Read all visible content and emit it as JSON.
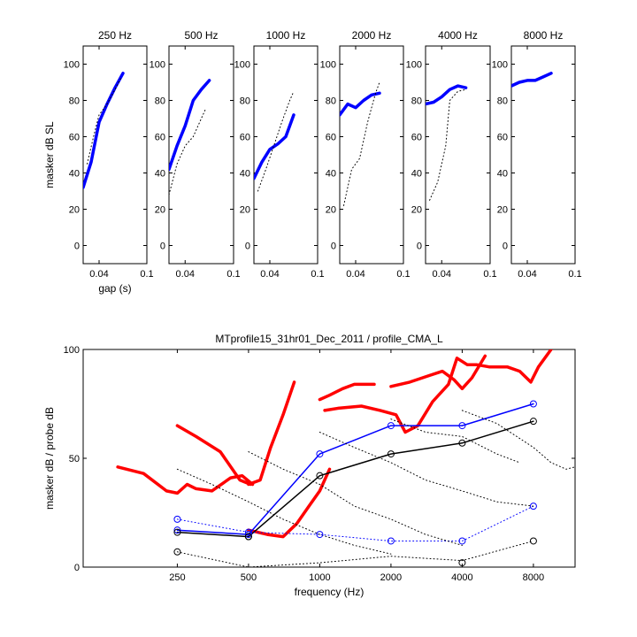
{
  "figure": {
    "background": "#ffffff"
  },
  "chart_data": [
    {
      "type": "line",
      "title": "250 Hz",
      "ylabel": "masker dB SL",
      "xlabel": "gap (s)",
      "xlim": [
        0.02,
        0.1
      ],
      "ylim": [
        -10,
        110
      ],
      "xticks": [
        0.04,
        0.1
      ],
      "xtick_labels": [
        "0.04",
        "0.1"
      ],
      "yticks": [
        0,
        20,
        40,
        60,
        80,
        100
      ],
      "ytick_labels": [
        "0",
        "20",
        "40",
        "60",
        "80",
        "100"
      ],
      "series": [
        {
          "style": "solid-thick",
          "color": "#0000ff",
          "x": [
            0.02,
            0.03,
            0.04,
            0.05,
            0.06,
            0.07
          ],
          "y": [
            32,
            46,
            68,
            78,
            87,
            95
          ]
        },
        {
          "style": "dotted",
          "color": "#000000",
          "x": [
            0.025,
            0.033,
            0.04,
            0.05,
            0.06,
            0.067
          ],
          "y": [
            45,
            60,
            72,
            78,
            86,
            92
          ]
        }
      ]
    },
    {
      "type": "line",
      "title": "500 Hz",
      "xlim": [
        0.02,
        0.1
      ],
      "ylim": [
        -10,
        110
      ],
      "xticks": [
        0.04,
        0.1
      ],
      "xtick_labels": [
        "0.04",
        "0.1"
      ],
      "yticks": [
        0,
        20,
        40,
        60,
        80,
        100
      ],
      "ytick_labels": [
        "0",
        "20",
        "40",
        "60",
        "80",
        "100"
      ],
      "series": [
        {
          "style": "solid-thick",
          "color": "#0000ff",
          "x": [
            0.02,
            0.03,
            0.04,
            0.05,
            0.06,
            0.07
          ],
          "y": [
            42,
            55,
            66,
            80,
            86,
            91
          ]
        },
        {
          "style": "dotted",
          "color": "#000000",
          "x": [
            0.02,
            0.03,
            0.04,
            0.05,
            0.06,
            0.065
          ],
          "y": [
            28,
            45,
            55,
            60,
            70,
            75
          ]
        }
      ]
    },
    {
      "type": "line",
      "title": "1000 Hz",
      "xlim": [
        0.02,
        0.1
      ],
      "ylim": [
        -10,
        110
      ],
      "xticks": [
        0.04,
        0.1
      ],
      "xtick_labels": [
        "0.04",
        "0.1"
      ],
      "yticks": [
        0,
        20,
        40,
        60,
        80,
        100
      ],
      "ytick_labels": [
        "0",
        "20",
        "40",
        "60",
        "80",
        "100"
      ],
      "series": [
        {
          "style": "solid-thick",
          "color": "#0000ff",
          "x": [
            0.02,
            0.03,
            0.04,
            0.05,
            0.06,
            0.07
          ],
          "y": [
            37,
            46,
            53,
            56,
            60,
            72
          ]
        },
        {
          "style": "dotted",
          "color": "#000000",
          "x": [
            0.025,
            0.035,
            0.045,
            0.055,
            0.065,
            0.07
          ],
          "y": [
            30,
            42,
            55,
            68,
            80,
            85
          ]
        }
      ]
    },
    {
      "type": "line",
      "title": "2000 Hz",
      "xlim": [
        0.02,
        0.1
      ],
      "ylim": [
        -10,
        110
      ],
      "xticks": [
        0.04,
        0.1
      ],
      "xtick_labels": [
        "0.04",
        "0.1"
      ],
      "yticks": [
        0,
        20,
        40,
        60,
        80,
        100
      ],
      "ytick_labels": [
        "0",
        "20",
        "40",
        "60",
        "80",
        "100"
      ],
      "series": [
        {
          "style": "solid-thick",
          "color": "#0000ff",
          "x": [
            0.02,
            0.03,
            0.04,
            0.05,
            0.06,
            0.07
          ],
          "y": [
            72,
            78,
            76,
            80,
            83,
            84
          ]
        },
        {
          "style": "dotted",
          "color": "#000000",
          "x": [
            0.025,
            0.035,
            0.045,
            0.055,
            0.065,
            0.07
          ],
          "y": [
            22,
            42,
            48,
            68,
            84,
            90
          ]
        }
      ]
    },
    {
      "type": "line",
      "title": "4000 Hz",
      "xlim": [
        0.02,
        0.1
      ],
      "ylim": [
        -10,
        110
      ],
      "xticks": [
        0.04,
        0.1
      ],
      "xtick_labels": [
        "0.04",
        "0.1"
      ],
      "yticks": [
        0,
        20,
        40,
        60,
        80,
        100
      ],
      "ytick_labels": [
        "0",
        "20",
        "40",
        "60",
        "80",
        "100"
      ],
      "series": [
        {
          "style": "solid-thick",
          "color": "#0000ff",
          "x": [
            0.02,
            0.03,
            0.04,
            0.05,
            0.06,
            0.07
          ],
          "y": [
            78,
            79,
            82,
            86,
            88,
            87
          ]
        },
        {
          "style": "dotted",
          "color": "#000000",
          "x": [
            0.025,
            0.035,
            0.045,
            0.05,
            0.06,
            0.07
          ],
          "y": [
            25,
            35,
            55,
            80,
            85,
            86
          ]
        }
      ]
    },
    {
      "type": "line",
      "title": "8000 Hz",
      "xlim": [
        0.02,
        0.1
      ],
      "ylim": [
        -10,
        110
      ],
      "xticks": [
        0.04,
        0.1
      ],
      "xtick_labels": [
        "0.04",
        "0.1"
      ],
      "yticks": [
        0,
        20,
        40,
        60,
        80,
        100
      ],
      "ytick_labels": [
        "0",
        "20",
        "40",
        "60",
        "80",
        "100"
      ],
      "series": [
        {
          "style": "solid-thick",
          "color": "#0000ff",
          "x": [
            0.02,
            0.03,
            0.04,
            0.05,
            0.06,
            0.07
          ],
          "y": [
            88,
            90,
            91,
            91,
            93,
            95
          ]
        }
      ]
    },
    {
      "type": "line",
      "title": "MTprofile15_31hr01_Dec_2011 / profile_CMA_L",
      "xlabel": "frequency (Hz)",
      "ylabel": "masker dB / probe dB",
      "x_scale": "log",
      "xlim": [
        100,
        12000
      ],
      "ylim": [
        0,
        100
      ],
      "xticks": [
        250,
        500,
        1000,
        2000,
        4000,
        8000
      ],
      "xtick_labels": [
        "250",
        "500",
        "1000",
        "2000",
        "4000",
        "8000"
      ],
      "yticks": [
        0,
        50,
        100
      ],
      "ytick_labels": [
        "0",
        "50",
        "100"
      ],
      "series": [
        {
          "style": "solid-thick",
          "color": "#ff0000",
          "x": [
            140,
            180,
            225,
            250,
            275,
            300,
            350,
            420,
            470,
            520
          ],
          "y": [
            46,
            43,
            35,
            34,
            38,
            36,
            35,
            41,
            42,
            38
          ]
        },
        {
          "style": "solid-thick",
          "color": "#ff0000",
          "x": [
            250,
            300,
            380,
            460,
            510
          ],
          "y": [
            65,
            60,
            53,
            40,
            38
          ]
        },
        {
          "style": "solid-thick",
          "color": "#ff0000",
          "x": [
            500,
            560,
            620,
            700,
            780
          ],
          "y": [
            38,
            40,
            55,
            70,
            85
          ]
        },
        {
          "style": "solid-thick",
          "color": "#ff0000",
          "x": [
            500,
            600,
            700,
            800,
            900,
            1000,
            1100
          ],
          "y": [
            17,
            15,
            14,
            20,
            28,
            35,
            45
          ]
        },
        {
          "style": "solid-thick",
          "color": "#ff0000",
          "x": [
            1000,
            1100,
            1250,
            1400,
            1700
          ],
          "y": [
            77,
            79,
            82,
            84,
            84
          ]
        },
        {
          "style": "solid-thick",
          "color": "#ff0000",
          "x": [
            1050,
            1200,
            1500,
            1800,
            2100,
            2300,
            2600,
            3000,
            3500,
            3800,
            4200,
            4600,
            5200,
            6200,
            7000,
            7800,
            8400,
            9500
          ],
          "y": [
            72,
            73,
            74,
            72,
            70,
            62,
            65,
            76,
            84,
            96,
            93,
            93,
            92,
            92,
            90,
            85,
            92,
            100
          ]
        },
        {
          "style": "solid-thick",
          "color": "#ff0000",
          "x": [
            2000,
            2400,
            2900,
            3300,
            3700,
            4000,
            4400,
            5000
          ],
          "y": [
            83,
            85,
            88,
            90,
            86,
            82,
            87,
            97
          ]
        },
        {
          "style": "solid",
          "color": "#0000ff",
          "x": [
            250,
            500,
            1000,
            2000,
            4000,
            8000
          ],
          "y": [
            17,
            15,
            52,
            65,
            65,
            75
          ]
        },
        {
          "style": "solid",
          "color": "#000000",
          "x": [
            250,
            500,
            1000,
            2000,
            4000,
            8000
          ],
          "y": [
            16,
            14,
            42,
            52,
            57,
            67
          ]
        },
        {
          "style": "dotted",
          "color": "#0000ff",
          "x": [
            250,
            500,
            1000,
            2000,
            4000,
            8000
          ],
          "y": [
            22,
            16,
            15,
            12,
            12,
            28
          ]
        },
        {
          "style": "dotted",
          "color": "#000000",
          "x": [
            250,
            500,
            1000,
            2000,
            4000,
            8000
          ],
          "y": [
            7,
            0,
            2,
            5,
            3,
            12
          ]
        },
        {
          "style": "dotted",
          "color": "#000000",
          "x": [
            250,
            350,
            500,
            700,
            1000,
            1400,
            2000
          ],
          "y": [
            45,
            38,
            30,
            22,
            15,
            10,
            6
          ]
        },
        {
          "style": "dotted",
          "color": "#000000",
          "x": [
            500,
            700,
            1000,
            1400,
            2000,
            2800,
            4000
          ],
          "y": [
            53,
            45,
            38,
            28,
            22,
            15,
            10
          ]
        },
        {
          "style": "dotted",
          "color": "#000000",
          "x": [
            1000,
            1400,
            2000,
            2800,
            4000,
            5600,
            8000
          ],
          "y": [
            62,
            55,
            48,
            40,
            35,
            30,
            28
          ]
        },
        {
          "style": "dotted",
          "color": "#000000",
          "x": [
            2000,
            2800,
            4000,
            5600,
            7000
          ],
          "y": [
            68,
            62,
            60,
            52,
            48
          ]
        },
        {
          "style": "dotted",
          "color": "#000000",
          "x": [
            4000,
            5600,
            8000,
            9500,
            11000,
            12000
          ],
          "y": [
            72,
            66,
            55,
            48,
            45,
            46
          ]
        }
      ],
      "markers": [
        {
          "color": "#0000ff",
          "x": [
            250,
            500,
            1000,
            2000,
            4000,
            8000
          ],
          "y": [
            17,
            15,
            52,
            65,
            65,
            75
          ]
        },
        {
          "color": "#000000",
          "x": [
            250,
            500,
            1000,
            2000,
            4000,
            8000
          ],
          "y": [
            16,
            14,
            42,
            52,
            57,
            67
          ]
        },
        {
          "color": "#0000ff",
          "x": [
            250,
            500,
            1000,
            2000,
            4000,
            8000
          ],
          "y": [
            22,
            16,
            15,
            12,
            12,
            28
          ]
        },
        {
          "color": "#000000",
          "x": [
            250,
            500,
            4000,
            8000
          ],
          "y": [
            7,
            14,
            2,
            12
          ]
        }
      ]
    }
  ]
}
